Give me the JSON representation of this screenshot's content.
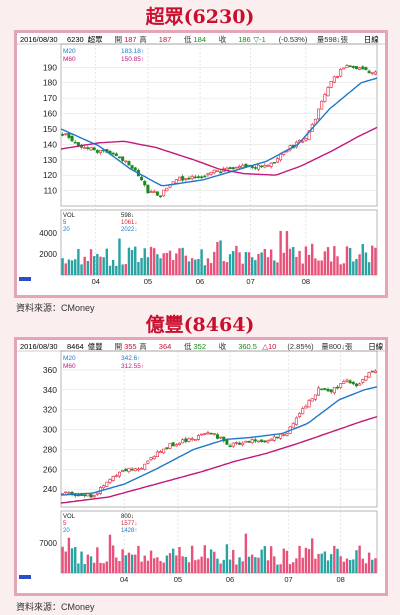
{
  "charts": [
    {
      "title": "超眾(6230)",
      "source": "資料來源：CMoney",
      "header": {
        "date": "2016/08/30",
        "code": "6230",
        "name": "超眾",
        "open_label": "開",
        "open": "187",
        "high_label": "高",
        "high": "187",
        "low_label": "低",
        "low": "184",
        "close_label": "收",
        "close": "186",
        "change": "▽-1",
        "pct": "(-0.53%)",
        "vol_label": "量",
        "vol": "598↓張",
        "period": "日線"
      },
      "ma_legend": [
        {
          "name": "M20",
          "value": "183.18↑",
          "color": "#1f78c8"
        },
        {
          "name": "M60",
          "value": "150.85↑",
          "color": "#c2187a"
        }
      ],
      "vol_legend": [
        {
          "name": "VOL",
          "value": "598↓",
          "color": "#222222"
        },
        {
          "name": "5",
          "value": "1061↓",
          "color": "#e0203a"
        },
        {
          "name": "20",
          "value": "2022↓",
          "color": "#1f78c8"
        }
      ],
      "price_ticks": [
        190,
        180,
        170,
        160,
        150,
        140,
        130,
        120,
        110
      ],
      "vol_ticks": [
        {
          "label": "4000",
          "v": 4000
        },
        {
          "label": "2000",
          "v": 2000
        }
      ],
      "months": [
        "04",
        "05",
        "06",
        "07",
        "08"
      ],
      "month_pos": [
        0.11,
        0.275,
        0.44,
        0.6,
        0.775
      ]
    },
    {
      "title": "億豐(8464)",
      "source": "資料來源：CMoney",
      "header": {
        "date": "2016/08/30",
        "code": "8464",
        "name": "億豐",
        "open_label": "開",
        "open": "355",
        "high_label": "高",
        "high": "364",
        "low_label": "低",
        "low": "352",
        "close_label": "收",
        "close": "360.5",
        "change": "△10",
        "pct": "(2.85%)",
        "vol_label": "量",
        "vol": "800↓張",
        "period": "日線"
      },
      "ma_legend": [
        {
          "name": "M20",
          "value": "342.6↑",
          "color": "#1f78c8"
        },
        {
          "name": "M60",
          "value": "312.55↑",
          "color": "#c2187a"
        }
      ],
      "vol_legend": [
        {
          "name": "VOL",
          "value": "800↓",
          "color": "#222222"
        },
        {
          "name": "5",
          "value": "1577↓",
          "color": "#e0203a"
        },
        {
          "name": "20",
          "value": "1428↑",
          "color": "#1f78c8"
        }
      ],
      "price_ticks": [
        360,
        340,
        320,
        300,
        280,
        260,
        240
      ],
      "vol_ticks": [
        {
          "label": "7000",
          "v": 7000
        }
      ],
      "months": [
        "04",
        "05",
        "06",
        "07",
        "08"
      ],
      "month_pos": [
        0.2,
        0.37,
        0.535,
        0.72,
        0.885
      ]
    }
  ],
  "chart_data": [
    {
      "type": "candlestick",
      "title": "超眾(6230)",
      "ylim": [
        100,
        198
      ],
      "vol_max": 6000,
      "series": [
        {
          "name": "M20",
          "anchors": [
            [
              0,
              150
            ],
            [
              0.12,
              139
            ],
            [
              0.22,
              124
            ],
            [
              0.32,
              113
            ],
            [
              0.45,
              117
            ],
            [
              0.55,
              123
            ],
            [
              0.65,
              129
            ],
            [
              0.75,
              140
            ],
            [
              0.85,
              163
            ],
            [
              0.95,
              180
            ],
            [
              1,
              183
            ]
          ]
        },
        {
          "name": "M60",
          "anchors": [
            [
              0,
              137
            ],
            [
              0.12,
              141
            ],
            [
              0.2,
              142
            ],
            [
              0.3,
              138
            ],
            [
              0.42,
              130
            ],
            [
              0.5,
              124
            ],
            [
              0.58,
              121
            ],
            [
              0.68,
              120
            ],
            [
              0.76,
              126
            ],
            [
              0.86,
              136
            ],
            [
              0.94,
              145
            ],
            [
              1,
              151
            ]
          ]
        }
      ],
      "candles_seed": 101,
      "price_path": [
        [
          0,
          147
        ],
        [
          0.08,
          137
        ],
        [
          0.15,
          135
        ],
        [
          0.22,
          126
        ],
        [
          0.27,
          110
        ],
        [
          0.31,
          107
        ],
        [
          0.36,
          117
        ],
        [
          0.44,
          119
        ],
        [
          0.52,
          124
        ],
        [
          0.58,
          126
        ],
        [
          0.66,
          126
        ],
        [
          0.72,
          137
        ],
        [
          0.78,
          144
        ],
        [
          0.85,
          178
        ],
        [
          0.9,
          191
        ],
        [
          0.95,
          190
        ],
        [
          1,
          186
        ]
      ]
    },
    {
      "type": "candlestick",
      "title": "億豐(8464)",
      "ylim": [
        222,
        368
      ],
      "vol_max": 14000,
      "series": [
        {
          "name": "M20",
          "anchors": [
            [
              0,
              234
            ],
            [
              0.1,
              236
            ],
            [
              0.2,
              245
            ],
            [
              0.3,
              260
            ],
            [
              0.42,
              280
            ],
            [
              0.52,
              290
            ],
            [
              0.6,
              292
            ],
            [
              0.7,
              296
            ],
            [
              0.78,
              306
            ],
            [
              0.88,
              330
            ],
            [
              0.96,
              340
            ],
            [
              1,
              343
            ]
          ]
        },
        {
          "name": "M60",
          "anchors": [
            [
              0,
              226
            ],
            [
              0.15,
              232
            ],
            [
              0.3,
              245
            ],
            [
              0.45,
              258
            ],
            [
              0.55,
              268
            ],
            [
              0.65,
              276
            ],
            [
              0.75,
              286
            ],
            [
              0.85,
              297
            ],
            [
              0.95,
              308
            ],
            [
              1,
              313
            ]
          ]
        }
      ],
      "candles_seed": 203,
      "price_path": [
        [
          0,
          236
        ],
        [
          0.1,
          233
        ],
        [
          0.18,
          258
        ],
        [
          0.25,
          262
        ],
        [
          0.33,
          283
        ],
        [
          0.4,
          290
        ],
        [
          0.48,
          296
        ],
        [
          0.54,
          284
        ],
        [
          0.6,
          288
        ],
        [
          0.66,
          289
        ],
        [
          0.72,
          298
        ],
        [
          0.77,
          320
        ],
        [
          0.82,
          342
        ],
        [
          0.86,
          338
        ],
        [
          0.9,
          350
        ],
        [
          0.94,
          345
        ],
        [
          1,
          361
        ]
      ]
    }
  ]
}
